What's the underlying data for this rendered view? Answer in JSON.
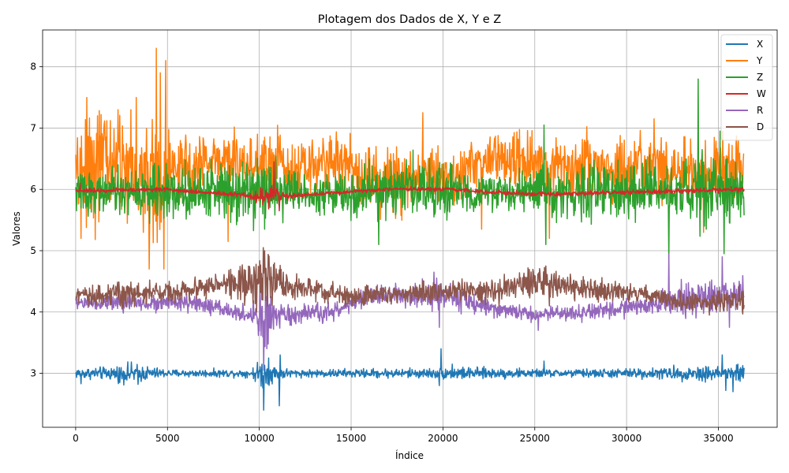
{
  "chart_data": {
    "type": "line",
    "title": "Plotagem dos Dados de X, Y e Z",
    "xlabel": "Índice",
    "ylabel": "Valores",
    "xlim": [
      -1800,
      38200
    ],
    "ylim": [
      2.12,
      8.6
    ],
    "xticks": [
      0,
      5000,
      10000,
      15000,
      20000,
      25000,
      30000,
      35000
    ],
    "yticks": [
      3,
      4,
      5,
      6,
      7,
      8
    ],
    "grid": true,
    "legend_position": "top-right",
    "x_max": 36400,
    "series": [
      {
        "name": "X",
        "color": "#1f77b4",
        "baseline": [
          [
            0,
            3.0
          ],
          [
            36400,
            3.0
          ]
        ],
        "noise": [
          [
            0,
            0.04
          ],
          [
            1800,
            0.05
          ],
          [
            3000,
            0.08
          ],
          [
            5000,
            0.03
          ],
          [
            9500,
            0.03
          ],
          [
            10200,
            0.12
          ],
          [
            11000,
            0.05
          ],
          [
            12000,
            0.03
          ],
          [
            19500,
            0.04
          ],
          [
            20500,
            0.05
          ],
          [
            26000,
            0.03
          ],
          [
            31000,
            0.04
          ],
          [
            34000,
            0.06
          ],
          [
            36400,
            0.08
          ]
        ],
        "spikes": [
          [
            300,
            2.83
          ],
          [
            2400,
            2.85
          ],
          [
            3400,
            2.82
          ],
          [
            10250,
            2.4
          ],
          [
            10500,
            3.25
          ],
          [
            11100,
            2.47
          ],
          [
            11150,
            3.3
          ],
          [
            19800,
            2.8
          ],
          [
            19900,
            3.4
          ],
          [
            20500,
            3.15
          ],
          [
            25500,
            3.2
          ],
          [
            33300,
            2.9
          ],
          [
            35200,
            3.3
          ],
          [
            35400,
            2.72
          ],
          [
            35800,
            2.7
          ]
        ]
      },
      {
        "name": "Y",
        "color": "#ff7f0e",
        "baseline": [
          [
            0,
            6.2
          ],
          [
            1000,
            6.45
          ],
          [
            2500,
            6.4
          ],
          [
            4000,
            6.15
          ],
          [
            5000,
            6.25
          ],
          [
            7500,
            6.5
          ],
          [
            9000,
            6.45
          ],
          [
            10000,
            6.35
          ],
          [
            11000,
            6.5
          ],
          [
            12000,
            6.3
          ],
          [
            14000,
            6.5
          ],
          [
            15500,
            6.3
          ],
          [
            17500,
            6.1
          ],
          [
            19000,
            6.3
          ],
          [
            20500,
            6.2
          ],
          [
            22000,
            6.45
          ],
          [
            24000,
            6.5
          ],
          [
            25500,
            6.35
          ],
          [
            28000,
            6.4
          ],
          [
            30000,
            6.3
          ],
          [
            33000,
            6.3
          ],
          [
            34000,
            6.2
          ],
          [
            36400,
            6.4
          ]
        ],
        "noise": [
          [
            0,
            0.25
          ],
          [
            800,
            0.55
          ],
          [
            2000,
            0.45
          ],
          [
            3500,
            0.35
          ],
          [
            4600,
            0.6
          ],
          [
            5200,
            0.25
          ],
          [
            8000,
            0.18
          ],
          [
            10300,
            0.3
          ],
          [
            11500,
            0.2
          ],
          [
            15000,
            0.22
          ],
          [
            17500,
            0.28
          ],
          [
            21000,
            0.2
          ],
          [
            26000,
            0.22
          ],
          [
            32000,
            0.28
          ],
          [
            36400,
            0.25
          ]
        ],
        "spikes": [
          [
            300,
            5.2
          ],
          [
            600,
            7.5
          ],
          [
            1200,
            7.2
          ],
          [
            2300,
            7.3
          ],
          [
            3000,
            7.3
          ],
          [
            3300,
            7.5
          ],
          [
            3700,
            5.3
          ],
          [
            4000,
            4.7
          ],
          [
            4400,
            8.3
          ],
          [
            4600,
            7.9
          ],
          [
            4800,
            4.7
          ],
          [
            4900,
            8.1
          ],
          [
            8300,
            5.15
          ],
          [
            9900,
            6.9
          ],
          [
            10300,
            6.85
          ],
          [
            18900,
            7.25
          ],
          [
            22100,
            5.35
          ],
          [
            25800,
            5.2
          ],
          [
            31500,
            7.15
          ],
          [
            34200,
            5.3
          ]
        ]
      },
      {
        "name": "Z",
        "color": "#2ca02c",
        "baseline": [
          [
            0,
            5.95
          ],
          [
            3000,
            5.95
          ],
          [
            6000,
            5.95
          ],
          [
            9500,
            6.05
          ],
          [
            11000,
            6.0
          ],
          [
            12500,
            5.95
          ],
          [
            15000,
            5.9
          ],
          [
            18000,
            6.05
          ],
          [
            21000,
            5.95
          ],
          [
            25000,
            5.95
          ],
          [
            30000,
            5.95
          ],
          [
            33000,
            5.95
          ],
          [
            36400,
            5.95
          ]
        ],
        "noise": [
          [
            0,
            0.15
          ],
          [
            4000,
            0.2
          ],
          [
            7000,
            0.22
          ],
          [
            9500,
            0.28
          ],
          [
            11000,
            0.22
          ],
          [
            14000,
            0.14
          ],
          [
            16000,
            0.22
          ],
          [
            19000,
            0.22
          ],
          [
            22000,
            0.15
          ],
          [
            26000,
            0.2
          ],
          [
            32000,
            0.22
          ],
          [
            34000,
            0.28
          ],
          [
            36400,
            0.22
          ]
        ],
        "spikes": [
          [
            10300,
            5.35
          ],
          [
            16500,
            5.1
          ],
          [
            25500,
            7.05
          ],
          [
            25600,
            5.1
          ],
          [
            27800,
            5.55
          ],
          [
            32300,
            4.85
          ],
          [
            33900,
            7.8
          ],
          [
            35100,
            6.95
          ],
          [
            35300,
            4.95
          ]
        ]
      },
      {
        "name": "W",
        "color": "#d62728",
        "baseline": [
          [
            0,
            5.98
          ],
          [
            5000,
            6.0
          ],
          [
            10000,
            5.88
          ],
          [
            12000,
            5.9
          ],
          [
            17000,
            6.0
          ],
          [
            20000,
            6.0
          ],
          [
            25000,
            5.92
          ],
          [
            30000,
            5.95
          ],
          [
            36400,
            6.0
          ]
        ],
        "noise": [
          [
            0,
            0.015
          ],
          [
            9500,
            0.02
          ],
          [
            10500,
            0.12
          ],
          [
            11500,
            0.03
          ],
          [
            12500,
            0.015
          ],
          [
            36400,
            0.02
          ]
        ],
        "spikes": [
          [
            250,
            6.1
          ],
          [
            10800,
            6.45
          ],
          [
            11100,
            5.65
          ]
        ]
      },
      {
        "name": "R",
        "color": "#9467bd",
        "baseline": [
          [
            0,
            4.15
          ],
          [
            2000,
            4.15
          ],
          [
            4000,
            4.15
          ],
          [
            6000,
            4.15
          ],
          [
            8000,
            4.05
          ],
          [
            10000,
            3.9
          ],
          [
            11000,
            3.92
          ],
          [
            14000,
            4.0
          ],
          [
            16000,
            4.25
          ],
          [
            20000,
            4.3
          ],
          [
            22000,
            4.1
          ],
          [
            25000,
            3.95
          ],
          [
            28000,
            4.0
          ],
          [
            31000,
            4.1
          ],
          [
            33000,
            4.2
          ],
          [
            36400,
            4.3
          ]
        ],
        "noise": [
          [
            0,
            0.05
          ],
          [
            2000,
            0.08
          ],
          [
            5000,
            0.06
          ],
          [
            9500,
            0.07
          ],
          [
            10300,
            0.25
          ],
          [
            11000,
            0.08
          ],
          [
            16000,
            0.07
          ],
          [
            19500,
            0.12
          ],
          [
            23000,
            0.06
          ],
          [
            31000,
            0.07
          ],
          [
            33500,
            0.14
          ],
          [
            36400,
            0.12
          ]
        ],
        "spikes": [
          [
            10250,
            3.05
          ],
          [
            10400,
            3.4
          ],
          [
            19500,
            4.65
          ],
          [
            19800,
            3.75
          ],
          [
            25200,
            3.7
          ],
          [
            32300,
            4.95
          ],
          [
            35200,
            4.9
          ],
          [
            35600,
            3.75
          ]
        ]
      },
      {
        "name": "D",
        "color": "#8c564b",
        "baseline": [
          [
            0,
            4.25
          ],
          [
            2000,
            4.3
          ],
          [
            5000,
            4.32
          ],
          [
            8000,
            4.45
          ],
          [
            10000,
            4.5
          ],
          [
            11000,
            4.45
          ],
          [
            13000,
            4.35
          ],
          [
            15000,
            4.25
          ],
          [
            17000,
            4.3
          ],
          [
            20000,
            4.35
          ],
          [
            23000,
            4.35
          ],
          [
            25500,
            4.5
          ],
          [
            28000,
            4.35
          ],
          [
            31000,
            4.3
          ],
          [
            33000,
            4.15
          ],
          [
            36400,
            4.2
          ]
        ],
        "noise": [
          [
            0,
            0.06
          ],
          [
            2500,
            0.12
          ],
          [
            5000,
            0.08
          ],
          [
            8000,
            0.08
          ],
          [
            10300,
            0.25
          ],
          [
            11500,
            0.1
          ],
          [
            14000,
            0.08
          ],
          [
            20000,
            0.08
          ],
          [
            25500,
            0.12
          ],
          [
            30000,
            0.07
          ],
          [
            34000,
            0.08
          ],
          [
            36400,
            0.1
          ]
        ],
        "spikes": [
          [
            10300,
            5.0
          ],
          [
            10500,
            4.9
          ],
          [
            25600,
            4.75
          ],
          [
            25800,
            4.1
          ],
          [
            34500,
            3.95
          ]
        ]
      }
    ]
  }
}
